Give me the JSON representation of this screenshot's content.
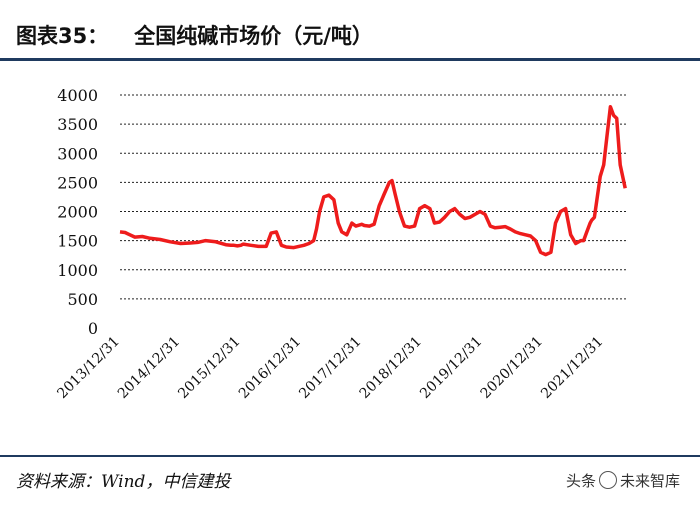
{
  "header": {
    "figure_number": "图表35：",
    "title": "全国纯碱市场价（元/吨）"
  },
  "footer": {
    "source": "资料来源：Wind，中信建投",
    "watermark_prefix": "头条",
    "watermark_name": "未来智库"
  },
  "colors": {
    "line": "#ee1c1c",
    "rule": "#1f3a5f"
  },
  "chart_data": {
    "type": "line",
    "title": "全国纯碱市场价（元/吨）",
    "xlabel": "",
    "ylabel": "",
    "ylim": [
      0,
      4000
    ],
    "yticks": [
      0,
      500,
      1000,
      1500,
      2000,
      2500,
      3000,
      3500,
      4000
    ],
    "xlim": [
      "2013-12-31",
      "2022-05-15"
    ],
    "xticks": [
      "2013/12/31",
      "2014/12/31",
      "2015/12/31",
      "2016/12/31",
      "2017/12/31",
      "2018/12/31",
      "2019/12/31",
      "2020/12/31",
      "2021/12/31"
    ],
    "grid": "horizontal-dashed",
    "series": [
      {
        "x": [
          "2013-12-31",
          "2014-01-31",
          "2014-03-01",
          "2014-03-31",
          "2014-05-15",
          "2014-06-30",
          "2014-08-31",
          "2014-10-31",
          "2015-01-01",
          "2015-03-01",
          "2015-04-15",
          "2015-06-01",
          "2015-08-01",
          "2015-10-01",
          "2015-11-01",
          "2015-11-20",
          "2015-12-10",
          "2015-12-31",
          "2016-01-15",
          "2016-03-01",
          "2016-04-15",
          "2016-06-01",
          "2016-07-01",
          "2016-08-01",
          "2016-09-01",
          "2016-10-01",
          "2016-11-15",
          "2016-12-15",
          "2017-01-15",
          "2017-02-15",
          "2017-03-15",
          "2017-04-01",
          "2017-04-20",
          "2017-05-15",
          "2017-06-15",
          "2017-07-15",
          "2017-08-10",
          "2017-09-01",
          "2017-10-01",
          "2017-11-01",
          "2017-11-25",
          "2017-12-31",
          "2018-01-15",
          "2018-02-15",
          "2018-03-15",
          "2018-04-15",
          "2018-05-15",
          "2018-06-15",
          "2018-07-01",
          "2018-07-20",
          "2018-08-15",
          "2018-09-15",
          "2018-10-15",
          "2018-11-15",
          "2018-12-15",
          "2019-01-15",
          "2019-02-15",
          "2019-03-15",
          "2019-04-15",
          "2019-05-15",
          "2019-06-15",
          "2019-07-15",
          "2019-08-15",
          "2019-09-15",
          "2019-10-15",
          "2019-11-15",
          "2019-12-15",
          "2020-01-15",
          "2020-02-15",
          "2020-03-15",
          "2020-04-15",
          "2020-05-15",
          "2020-06-15",
          "2020-07-15",
          "2020-08-15",
          "2020-09-15",
          "2020-10-15",
          "2020-11-15",
          "2020-12-15",
          "2021-01-15",
          "2021-02-15",
          "2021-03-15",
          "2021-04-15",
          "2021-05-15",
          "2021-06-15",
          "2021-07-15",
          "2021-08-15",
          "2021-09-01",
          "2021-09-20",
          "2021-10-10",
          "2021-10-20",
          "2021-11-05",
          "2021-11-20",
          "2021-12-10",
          "2021-12-31",
          "2022-01-20",
          "2022-02-10",
          "2022-03-01",
          "2022-03-20",
          "2022-04-10",
          "2022-05-10"
        ],
        "values": [
          1650,
          1640,
          1600,
          1560,
          1570,
          1540,
          1520,
          1480,
          1450,
          1460,
          1470,
          1500,
          1480,
          1430,
          1420,
          1420,
          1410,
          1420,
          1440,
          1420,
          1400,
          1400,
          1630,
          1650,
          1420,
          1390,
          1380,
          1400,
          1420,
          1450,
          1500,
          1700,
          2000,
          2250,
          2280,
          2200,
          1800,
          1650,
          1600,
          1800,
          1750,
          1780,
          1760,
          1750,
          1780,
          2100,
          2300,
          2500,
          2530,
          2300,
          2000,
          1750,
          1730,
          1750,
          2050,
          2100,
          2050,
          1800,
          1820,
          1900,
          2000,
          2050,
          1950,
          1880,
          1900,
          1950,
          2000,
          1950,
          1750,
          1720,
          1730,
          1740,
          1700,
          1650,
          1620,
          1600,
          1580,
          1500,
          1300,
          1260,
          1300,
          1800,
          2000,
          2050,
          1600,
          1450,
          1500,
          1500,
          1650,
          1800,
          1850,
          1900,
          2200,
          2600,
          2800,
          3300,
          3800,
          3650,
          3600,
          2800,
          2400
        ]
      }
    ]
  }
}
